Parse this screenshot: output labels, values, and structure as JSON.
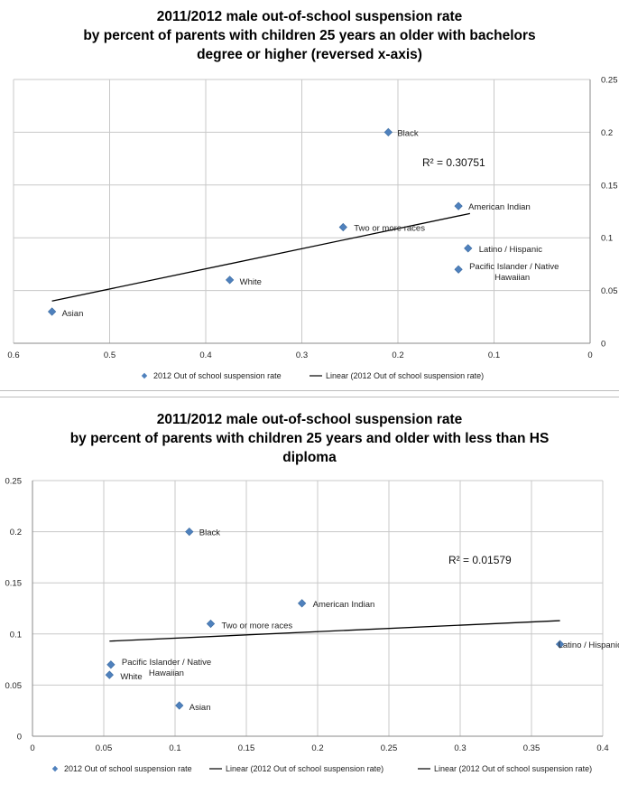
{
  "chart_data": [
    {
      "type": "scatter",
      "title": [
        "2011/2012 male out-of-school suspension rate",
        "by percent of parents with children 25 years an older with bachelors",
        "degree or higher (reversed x-axis)"
      ],
      "xlim": [
        0,
        0.6
      ],
      "ylim": [
        0,
        0.25
      ],
      "x_reversed": true,
      "y_axis_side": "right",
      "x_ticks": [
        "0.6",
        "0.5",
        "0.4",
        "0.3",
        "0.2",
        "0.1",
        "0"
      ],
      "y_ticks": [
        "0",
        "0.05",
        "0.1",
        "0.15",
        "0.2",
        "0.25"
      ],
      "grid": true,
      "legend_position": "bottom",
      "series": [
        {
          "name": "2012 Out of school suspension rate",
          "color": "#4f81bd",
          "points": [
            {
              "label": "Black",
              "x": 0.21,
              "y": 0.2
            },
            {
              "label": "American Indian",
              "x": 0.137,
              "y": 0.13
            },
            {
              "label": "Two or more races",
              "x": 0.257,
              "y": 0.11
            },
            {
              "label": "Latino / Hispanic",
              "x": 0.127,
              "y": 0.09
            },
            {
              "label": "Pacific Islander / Native Hawaiian",
              "x": 0.137,
              "y": 0.07
            },
            {
              "label": "White",
              "x": 0.375,
              "y": 0.06
            },
            {
              "label": "Asian",
              "x": 0.56,
              "y": 0.03
            }
          ]
        }
      ],
      "trendline": {
        "name": "Linear (2012 Out of school suspension rate)",
        "color": "#000000",
        "x": [
          0.56,
          0.125
        ],
        "y": [
          0.04,
          0.123
        ]
      },
      "r2_label": "R² = 0.30751"
    },
    {
      "type": "scatter",
      "title": [
        "2011/2012 male out-of-school suspension rate",
        "by percent of parents with children 25 years and older with less than HS",
        "diploma"
      ],
      "xlim": [
        0,
        0.4
      ],
      "ylim": [
        0,
        0.25
      ],
      "x_reversed": false,
      "y_axis_side": "left",
      "x_ticks": [
        "0",
        "0.05",
        "0.1",
        "0.15",
        "0.2",
        "0.25",
        "0.3",
        "0.35",
        "0.4"
      ],
      "y_ticks": [
        "0",
        "0.05",
        "0.1",
        "0.15",
        "0.2",
        "0.25"
      ],
      "grid": true,
      "legend_position": "bottom",
      "series": [
        {
          "name": "2012 Out of school suspension rate",
          "color": "#4f81bd",
          "points": [
            {
              "label": "Black",
              "x": 0.11,
              "y": 0.2
            },
            {
              "label": "American Indian",
              "x": 0.189,
              "y": 0.13
            },
            {
              "label": "Two or more races",
              "x": 0.125,
              "y": 0.11
            },
            {
              "label": "Latino / Hispanic",
              "x": 0.37,
              "y": 0.09
            },
            {
              "label": "Pacific Islander / Native Hawaiian",
              "x": 0.055,
              "y": 0.07
            },
            {
              "label": "White",
              "x": 0.054,
              "y": 0.06
            },
            {
              "label": "Asian",
              "x": 0.103,
              "y": 0.03
            }
          ]
        }
      ],
      "trendline": {
        "name": "Linear (2012 Out of school suspension rate)",
        "color": "#000000",
        "x": [
          0.054,
          0.37
        ],
        "y": [
          0.093,
          0.113
        ]
      },
      "extra_legend_entries": [
        "Linear (2012 Out of school suspension rate)"
      ],
      "r2_label": "R² = 0.01579"
    }
  ]
}
